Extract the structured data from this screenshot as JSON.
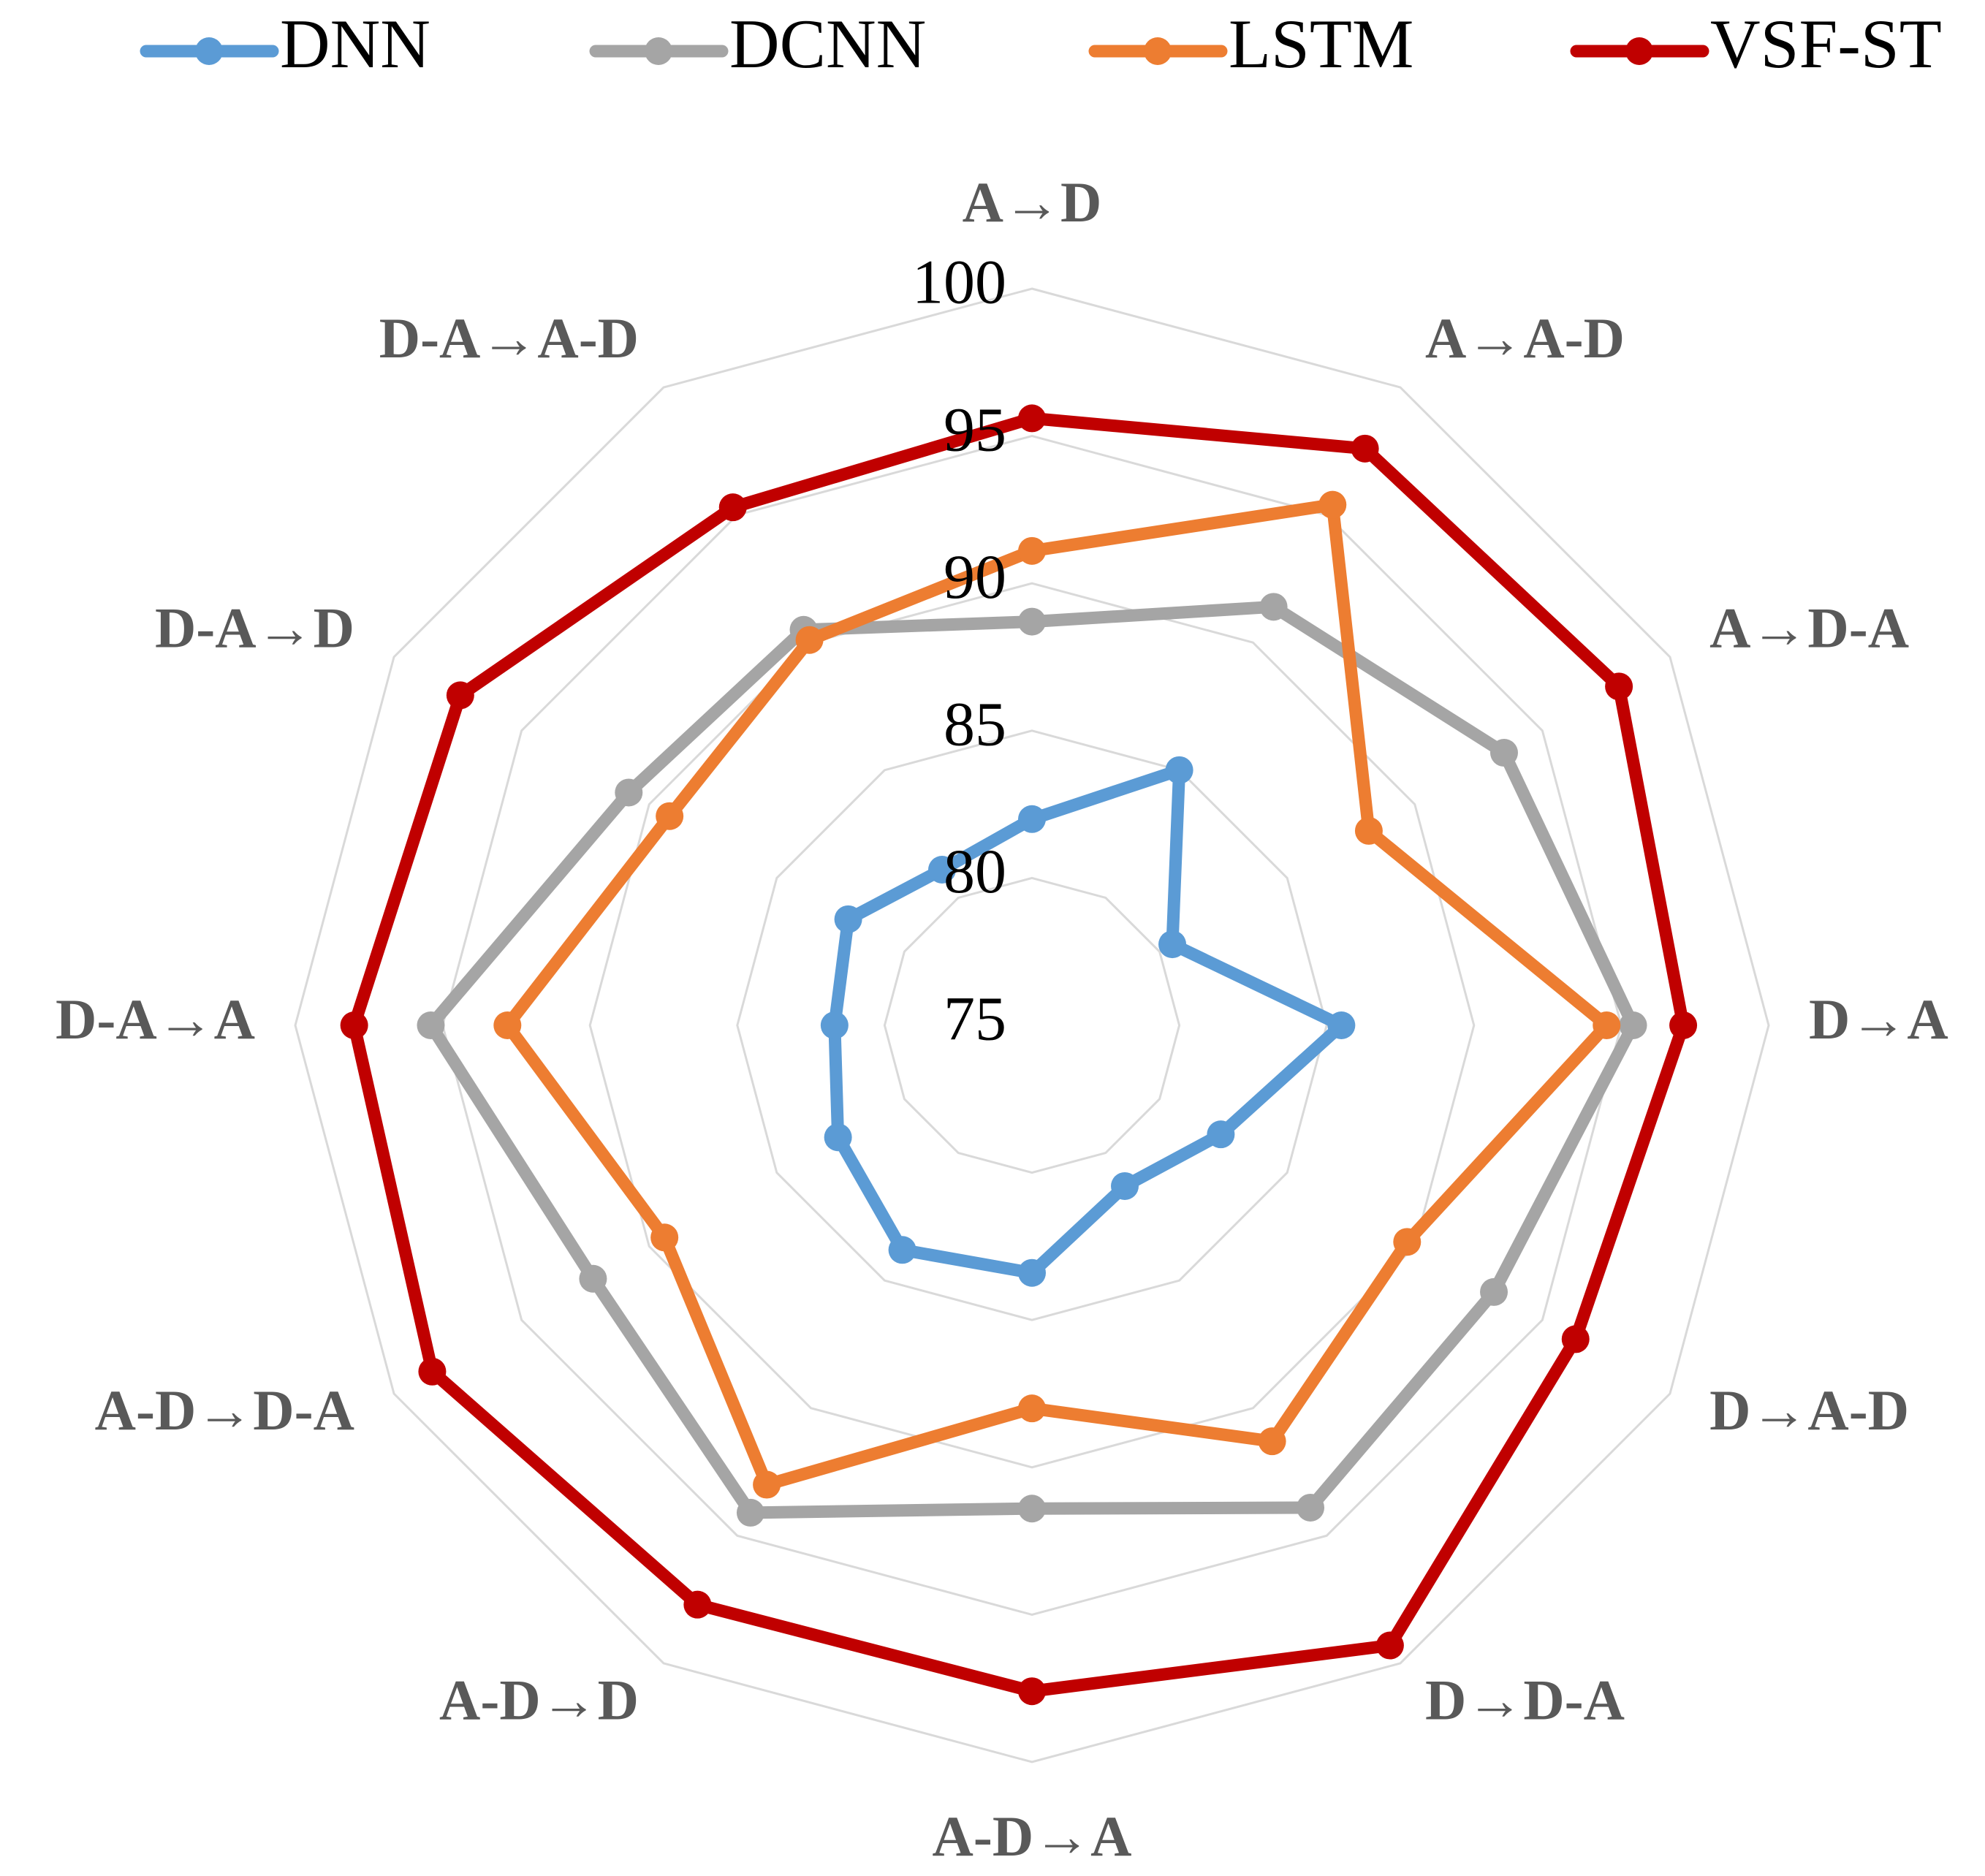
{
  "chart_data": {
    "type": "radar",
    "categories": [
      "A→D",
      "A→A-D",
      "A→D-A",
      "D→A",
      "D→A-D",
      "D→D-A",
      "A-D→A",
      "A-D→D",
      "A-D→D-A",
      "D-A→A",
      "D-A→D",
      "D-A→A-D"
    ],
    "series": [
      {
        "name": "DNN",
        "color": "#5b9bd5",
        "values": [
          82.0,
          85.0,
          80.5,
          85.5,
          82.4,
          81.3,
          83.4,
          83.8,
          82.6,
          81.7,
          82.2,
          81.1
        ]
      },
      {
        "name": "DCNN",
        "color": "#a5a5a5",
        "values": [
          88.7,
          91.4,
          93.5,
          95.4,
          93.1,
          93.9,
          91.4,
          94.1,
          92.2,
          95.4,
          90.8,
          90.5
        ]
      },
      {
        "name": "LSTM",
        "color": "#ed7d31",
        "values": [
          91.1,
          95.4,
          88.2,
          94.5,
          89.7,
          91.3,
          88.0,
          93.0,
          89.4,
          92.8,
          89.2,
          90.1
        ]
      },
      {
        "name": "VSF-ST",
        "color": "#c00000",
        "values": [
          95.6,
          97.6,
          98.0,
          97.1,
          96.3,
          99.3,
          97.6,
          97.7,
          98.5,
          98.0,
          97.4,
          95.3
        ]
      }
    ],
    "rlim": [
      75,
      100
    ],
    "rticks": [
      75,
      80,
      85,
      90,
      95,
      100
    ],
    "grid": true,
    "legend": "top"
  }
}
